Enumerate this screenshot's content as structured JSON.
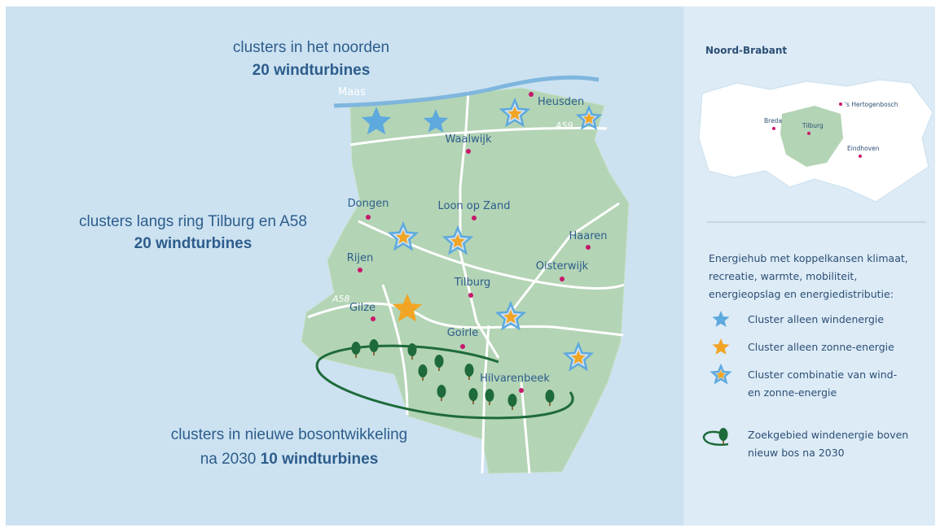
{
  "headings": [
    {
      "line1": "clusters in het noorden",
      "bold": "20 windturbines"
    },
    {
      "line1": "clusters langs ring Tilburg en A58",
      "bold": "20 windturbines"
    },
    {
      "line1": "clusters in nieuwe bosontwikkeling",
      "line2": "na 2030",
      "bold": "10 windturbines"
    }
  ],
  "river": "Maas",
  "roads": [
    "A59",
    "A58"
  ],
  "places": [
    "Heusden",
    "Waalwijk",
    "Dongen",
    "Loon op Zand",
    "Haaren",
    "Rijen",
    "Oisterwijk",
    "Tilburg",
    "Gilze",
    "Goirle",
    "Hilvarenbeek"
  ],
  "inset": {
    "title": "Noord-Brabant",
    "places": [
      "'s Hertogenbosch",
      "Breda",
      "Tilburg",
      "Eindhoven"
    ]
  },
  "legend": {
    "intro": [
      "Energiehub met koppelkansen klimaat,",
      "recreatie, warmte, mobiliteit,",
      "energieopslag en energiedistributie:"
    ],
    "items": [
      {
        "lines": [
          "Cluster alleen windenergie"
        ]
      },
      {
        "lines": [
          "Cluster alleen zonne-energie"
        ]
      },
      {
        "lines": [
          "Cluster combinatie van wind-",
          "en zonne-energie"
        ]
      },
      {
        "lines": [
          "Zoekgebied windenergie boven",
          "nieuw bos na 2030"
        ]
      }
    ]
  }
}
